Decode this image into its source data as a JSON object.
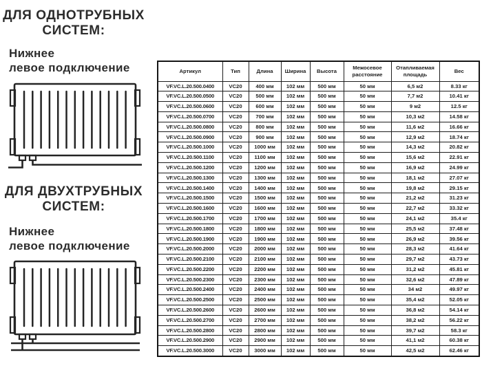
{
  "colors": {
    "text": "#2b2b2b",
    "table_border": "#1c1c1c",
    "background": "#ffffff"
  },
  "left_panel": {
    "section1": {
      "heading_line1": "ДЛЯ ОДНОТРУБНЫХ",
      "heading_line2": "СИСТЕМ:",
      "subheading_line1": "Нижнее",
      "subheading_line2": "левое подключение",
      "diagram": "radiator-bottom-left-connection-single-pipe"
    },
    "section2": {
      "heading_line1": "ДЛЯ ДВУХТРУБНЫХ",
      "heading_line2": "СИСТЕМ:",
      "subheading_line1": "Нижнее",
      "subheading_line2": "левое подключение",
      "diagram": "radiator-bottom-left-connection-two-pipe"
    }
  },
  "table": {
    "headers": [
      "Артикул",
      "Тип",
      "Длина",
      "Ширина",
      "Высота",
      "Межосевое\nрасстояние",
      "Отапливаемая\nплощадь",
      "Вес"
    ],
    "rows": [
      [
        "VF.VC.L.20.500.0400",
        "VC20",
        "400 мм",
        "102 мм",
        "500 мм",
        "50 мм",
        "6,5 м2",
        "8.33 кг"
      ],
      [
        "VF.VC.L.20.500.0500",
        "VC20",
        "500 мм",
        "102 мм",
        "500 мм",
        "50 мм",
        "7,7 м2",
        "10.41 кг"
      ],
      [
        "VF.VC.L.20.500.0600",
        "VC20",
        "600 мм",
        "102 мм",
        "500 мм",
        "50 мм",
        "9 м2",
        "12.5 кг"
      ],
      [
        "VF.VC.L.20.500.0700",
        "VC20",
        "700 мм",
        "102 мм",
        "500 мм",
        "50 мм",
        "10,3 м2",
        "14.58 кг"
      ],
      [
        "VF.VC.L.20.500.0800",
        "VC20",
        "800 мм",
        "102 мм",
        "500 мм",
        "50 мм",
        "11,6 м2",
        "16.66 кг"
      ],
      [
        "VF.VC.L.20.500.0900",
        "VC20",
        "900 мм",
        "102 мм",
        "500 мм",
        "50 мм",
        "12,9 м2",
        "18.74 кг"
      ],
      [
        "VF.VC.L.20.500.1000",
        "VC20",
        "1000 мм",
        "102 мм",
        "500 мм",
        "50 мм",
        "14,3 м2",
        "20.82 кг"
      ],
      [
        "VF.VC.L.20.500.1100",
        "VC20",
        "1100 мм",
        "102 мм",
        "500 мм",
        "50 мм",
        "15,6 м2",
        "22.91 кг"
      ],
      [
        "VF.VC.L.20.500.1200",
        "VC20",
        "1200 мм",
        "102 мм",
        "500 мм",
        "50 мм",
        "16,9 м2",
        "24.99 кг"
      ],
      [
        "VF.VC.L.20.500.1300",
        "VC20",
        "1300 мм",
        "102 мм",
        "500 мм",
        "50 мм",
        "18,1 м2",
        "27.07 кг"
      ],
      [
        "VF.VC.L.20.500.1400",
        "VC20",
        "1400 мм",
        "102 мм",
        "500 мм",
        "50 мм",
        "19,8 м2",
        "29.15 кг"
      ],
      [
        "VF.VC.L.20.500.1500",
        "VC20",
        "1500 мм",
        "102 мм",
        "500 мм",
        "50 мм",
        "21,2 м2",
        "31.23 кг"
      ],
      [
        "VF.VC.L.20.500.1600",
        "VC20",
        "1600 мм",
        "102 мм",
        "500 мм",
        "50 мм",
        "22,7 м2",
        "33.32 кг"
      ],
      [
        "VF.VC.L.20.500.1700",
        "VC20",
        "1700 мм",
        "102 мм",
        "500 мм",
        "50 мм",
        "24,1 м2",
        "35.4 кг"
      ],
      [
        "VF.VC.L.20.500.1800",
        "VC20",
        "1800 мм",
        "102 мм",
        "500 мм",
        "50 мм",
        "25,5 м2",
        "37.48 кг"
      ],
      [
        "VF.VC.L.20.500.1900",
        "VC20",
        "1900 мм",
        "102 мм",
        "500 мм",
        "50 мм",
        "26,9 м2",
        "39.56 кг"
      ],
      [
        "VF.VC.L.20.500.2000",
        "VC20",
        "2000 мм",
        "102 мм",
        "500 мм",
        "50 мм",
        "28,3 м2",
        "41.64 кг"
      ],
      [
        "VF.VC.L.20.500.2100",
        "VC20",
        "2100 мм",
        "102 мм",
        "500 мм",
        "50 мм",
        "29,7 м2",
        "43.73 кг"
      ],
      [
        "VF.VC.L.20.500.2200",
        "VC20",
        "2200 мм",
        "102 мм",
        "500 мм",
        "50 мм",
        "31,2 м2",
        "45.81 кг"
      ],
      [
        "VF.VC.L.20.500.2300",
        "VC20",
        "2300 мм",
        "102 мм",
        "500 мм",
        "50 мм",
        "32,6 м2",
        "47.89 кг"
      ],
      [
        "VF.VC.L.20.500.2400",
        "VC20",
        "2400 мм",
        "102 мм",
        "500 мм",
        "50 мм",
        "34 м2",
        "49.97 кг"
      ],
      [
        "VF.VC.L.20.500.2500",
        "VC20",
        "2500 мм",
        "102 мм",
        "500 мм",
        "50 мм",
        "35,4 м2",
        "52.05 кг"
      ],
      [
        "VF.VC.L.20.500.2600",
        "VC20",
        "2600 мм",
        "102 мм",
        "500 мм",
        "50 мм",
        "36,8 м2",
        "54.14 кг"
      ],
      [
        "VF.VC.L.20.500.2700",
        "VC20",
        "2700 мм",
        "102 мм",
        "500 мм",
        "50 мм",
        "38,2 м2",
        "56.22 кг"
      ],
      [
        "VF.VC.L.20.500.2800",
        "VC20",
        "2800 мм",
        "102 мм",
        "500 мм",
        "50 мм",
        "39,7 м2",
        "58.3 кг"
      ],
      [
        "VF.VC.L.20.500.2900",
        "VC20",
        "2900 мм",
        "102 мм",
        "500 мм",
        "50 мм",
        "41,1 м2",
        "60.38 кг"
      ],
      [
        "VF.VC.L.20.500.3000",
        "VC20",
        "3000 мм",
        "102 мм",
        "500 мм",
        "50 мм",
        "42,5 м2",
        "62.46 кг"
      ]
    ]
  }
}
